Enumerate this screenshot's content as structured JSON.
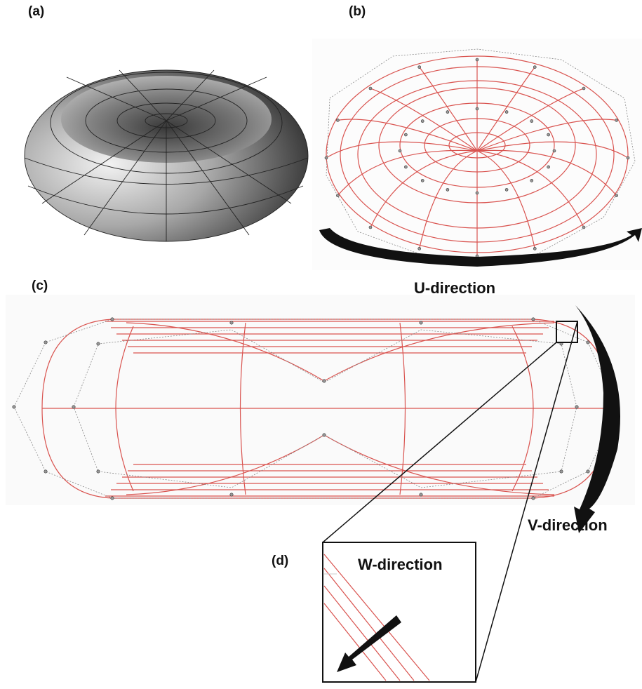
{
  "labels": {
    "a": "(a)",
    "b": "(b)",
    "c": "(c)",
    "d": "(d)"
  },
  "directions": {
    "u": "U-direction",
    "v": "V-direction",
    "w": "W-direction"
  }
}
